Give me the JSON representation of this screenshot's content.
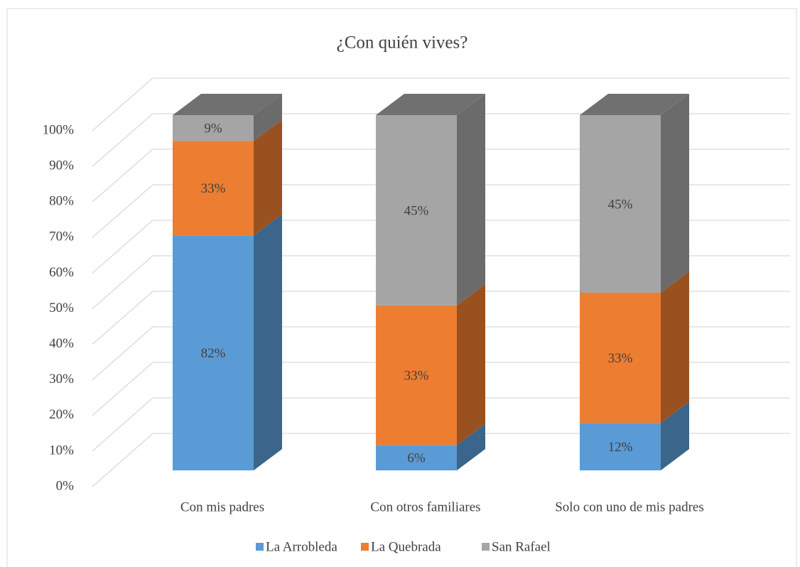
{
  "chart_data": {
    "type": "bar",
    "stacking": "percent",
    "title": "¿Con quién vives?",
    "categories": [
      "Con mis padres",
      "Con otros familiares",
      "Solo con uno de mis padres"
    ],
    "series": [
      {
        "name": "La Arrobleda",
        "color": "#5b9bd5",
        "values": [
          82,
          6,
          12
        ],
        "value_labels": [
          "82%",
          "6%",
          "12%"
        ]
      },
      {
        "name": "La Quebrada",
        "color": "#ed7d31",
        "values": [
          33,
          33,
          33
        ],
        "value_labels": [
          "33%",
          "33%",
          "33%"
        ]
      },
      {
        "name": "San Rafael",
        "color": "#a5a5a5",
        "values": [
          9,
          45,
          45
        ],
        "value_labels": [
          "9%",
          "45%",
          "45%"
        ]
      }
    ],
    "ylim": [
      0,
      100
    ],
    "yticks": [
      {
        "value": 0,
        "label": "0%"
      },
      {
        "value": 10,
        "label": "10%"
      },
      {
        "value": 20,
        "label": "20%"
      },
      {
        "value": 30,
        "label": "30%"
      },
      {
        "value": 40,
        "label": "40%"
      },
      {
        "value": 50,
        "label": "50%"
      },
      {
        "value": 60,
        "label": "60%"
      },
      {
        "value": 70,
        "label": "70%"
      },
      {
        "value": 80,
        "label": "80%"
      },
      {
        "value": 90,
        "label": "90%"
      },
      {
        "value": 100,
        "label": "100%"
      }
    ],
    "grid": true,
    "legend": "bottom"
  }
}
